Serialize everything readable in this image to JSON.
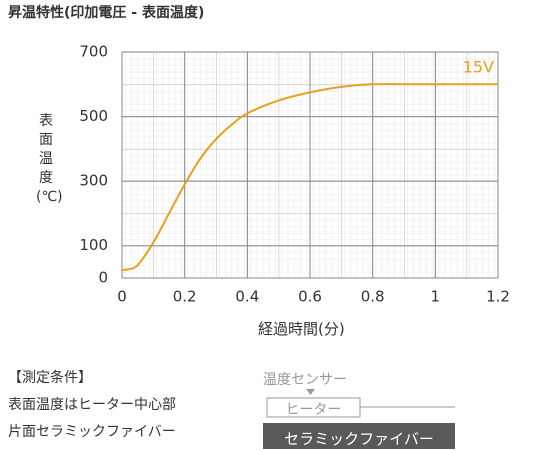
{
  "chart_data": {
    "type": "line",
    "title": "昇温特性(印加電圧 - 表面温度)",
    "ylabel": "表面温度(℃)",
    "xlabel": "経過時間(分)",
    "x": [
      0,
      0.02,
      0.05,
      0.1,
      0.15,
      0.2,
      0.25,
      0.3,
      0.35,
      0.4,
      0.5,
      0.6,
      0.7,
      0.8,
      1.0,
      1.2
    ],
    "series": [
      {
        "name": "15V",
        "color": "#e8a020",
        "values": [
          25,
          27,
          40,
          110,
          200,
          290,
          370,
          430,
          475,
          510,
          550,
          575,
          592,
          600,
          600,
          600
        ]
      }
    ],
    "xlim": [
      0,
      1.2
    ],
    "xticks": [
      0,
      0.2,
      0.4,
      0.6,
      0.8,
      1,
      1.2
    ],
    "ylim": [
      0,
      700
    ],
    "yticks": [
      0,
      100,
      300,
      500,
      700
    ],
    "grid": true
  },
  "conditions": {
    "heading": "【測定条件】",
    "lines": [
      "表面温度はヒーター中心部",
      "片面セラミックファイバー"
    ]
  },
  "diagram": {
    "sensor": "温度センサー",
    "heater": "ヒーター",
    "fiber": "セラミックファイバー"
  }
}
